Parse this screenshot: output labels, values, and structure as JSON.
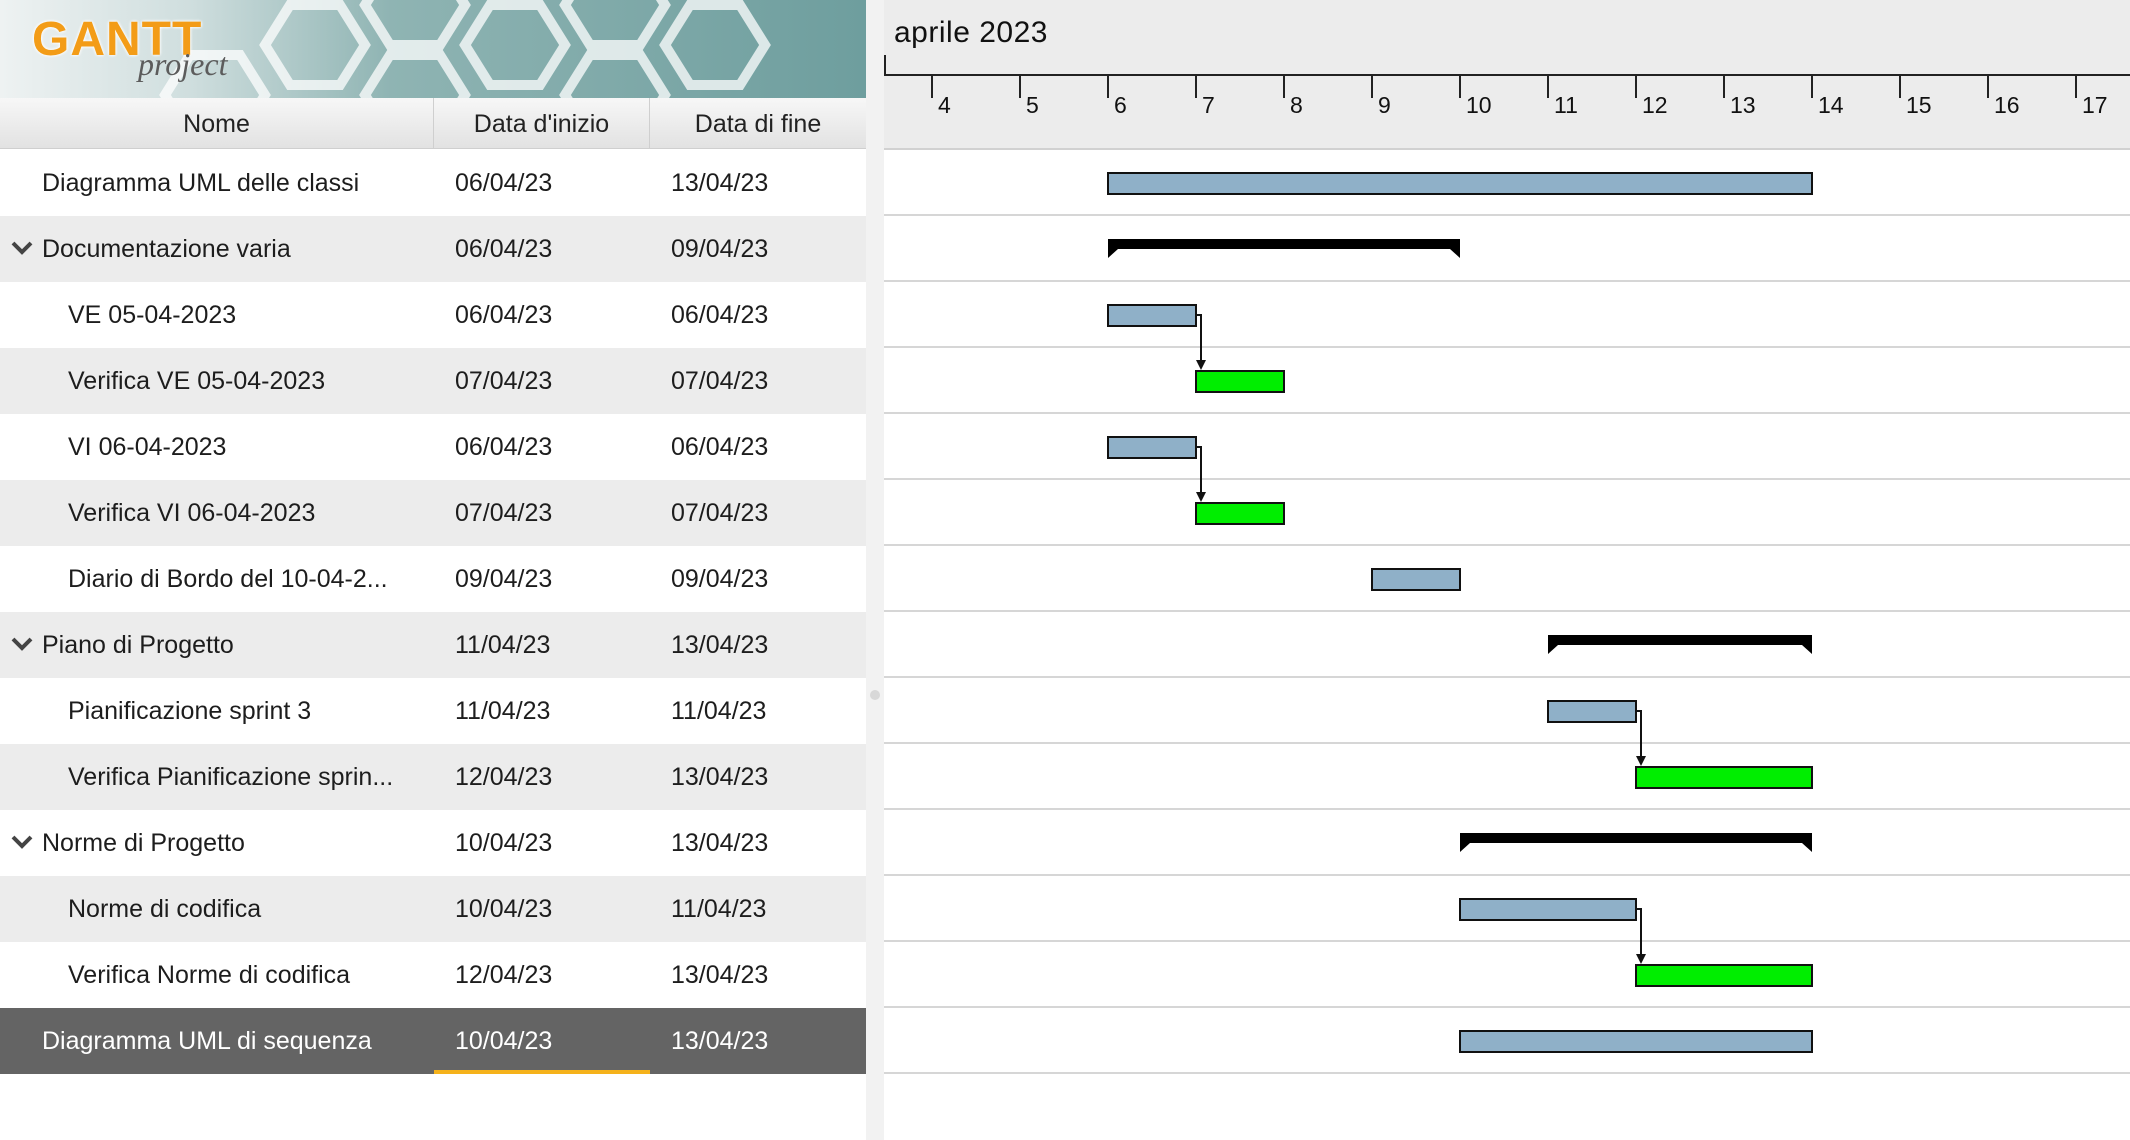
{
  "app": {
    "logo_main": "GANTT",
    "logo_sub": "project"
  },
  "columns": {
    "name": "Nome",
    "start": "Data d'inizio",
    "end": "Data di fine"
  },
  "timeline": {
    "month": "aprile 2023",
    "days": [
      "4",
      "5",
      "6",
      "7",
      "8",
      "9",
      "10",
      "11",
      "12",
      "13",
      "14",
      "15",
      "16",
      "17"
    ]
  },
  "tasks": [
    {
      "name": "Diagramma UML delle classi",
      "start": "06/04/23",
      "end": "13/04/23",
      "level": 0,
      "group": false
    },
    {
      "name": "Documentazione varia",
      "start": "06/04/23",
      "end": "09/04/23",
      "level": 0,
      "group": true
    },
    {
      "name": "VE 05-04-2023",
      "start": "06/04/23",
      "end": "06/04/23",
      "level": 1,
      "group": false
    },
    {
      "name": "Verifica VE 05-04-2023",
      "start": "07/04/23",
      "end": "07/04/23",
      "level": 1,
      "group": false
    },
    {
      "name": "VI 06-04-2023",
      "start": "06/04/23",
      "end": "06/04/23",
      "level": 1,
      "group": false
    },
    {
      "name": "Verifica VI 06-04-2023",
      "start": "07/04/23",
      "end": "07/04/23",
      "level": 1,
      "group": false
    },
    {
      "name": "Diario di Bordo del 10-04-2...",
      "start": "09/04/23",
      "end": "09/04/23",
      "level": 1,
      "group": false
    },
    {
      "name": "Piano di Progetto",
      "start": "11/04/23",
      "end": "13/04/23",
      "level": 0,
      "group": true
    },
    {
      "name": "Pianificazione sprint 3",
      "start": "11/04/23",
      "end": "11/04/23",
      "level": 1,
      "group": false
    },
    {
      "name": "Verifica Pianificazione sprin...",
      "start": "12/04/23",
      "end": "13/04/23",
      "level": 1,
      "group": false
    },
    {
      "name": "Norme di Progetto",
      "start": "10/04/23",
      "end": "13/04/23",
      "level": 0,
      "group": true
    },
    {
      "name": "Norme di codifica",
      "start": "10/04/23",
      "end": "11/04/23",
      "level": 1,
      "group": false
    },
    {
      "name": "Verifica Norme di codifica",
      "start": "12/04/23",
      "end": "13/04/23",
      "level": 1,
      "group": false
    },
    {
      "name": "Diagramma UML di sequenza",
      "start": "10/04/23",
      "end": "13/04/23",
      "level": 0,
      "group": false,
      "selected": true
    }
  ],
  "bars": [
    {
      "row": 0,
      "from": 6,
      "to": 14,
      "kind": "task"
    },
    {
      "row": 1,
      "from": 6,
      "to": 10,
      "kind": "summary"
    },
    {
      "row": 2,
      "from": 6,
      "to": 7,
      "kind": "task"
    },
    {
      "row": 3,
      "from": 7,
      "to": 8,
      "kind": "check"
    },
    {
      "row": 4,
      "from": 6,
      "to": 7,
      "kind": "task"
    },
    {
      "row": 5,
      "from": 7,
      "to": 8,
      "kind": "check"
    },
    {
      "row": 6,
      "from": 9,
      "to": 10,
      "kind": "task"
    },
    {
      "row": 7,
      "from": 11,
      "to": 14,
      "kind": "summary"
    },
    {
      "row": 8,
      "from": 11,
      "to": 12,
      "kind": "task"
    },
    {
      "row": 9,
      "from": 12,
      "to": 14,
      "kind": "check"
    },
    {
      "row": 10,
      "from": 10,
      "to": 14,
      "kind": "summary"
    },
    {
      "row": 11,
      "from": 10,
      "to": 12,
      "kind": "task"
    },
    {
      "row": 12,
      "from": 12,
      "to": 14,
      "kind": "check"
    },
    {
      "row": 13,
      "from": 10,
      "to": 14,
      "kind": "task"
    }
  ],
  "dependencies": [
    {
      "from_row": 2,
      "to_row": 3
    },
    {
      "from_row": 4,
      "to_row": 5
    },
    {
      "from_row": 8,
      "to_row": 9
    },
    {
      "from_row": 11,
      "to_row": 12
    }
  ],
  "colors": {
    "task": "#8fb0c8",
    "check": "#00ee00",
    "summary": "#000000",
    "selected_row": "#646464",
    "selection_accent": "#f5b21b"
  }
}
